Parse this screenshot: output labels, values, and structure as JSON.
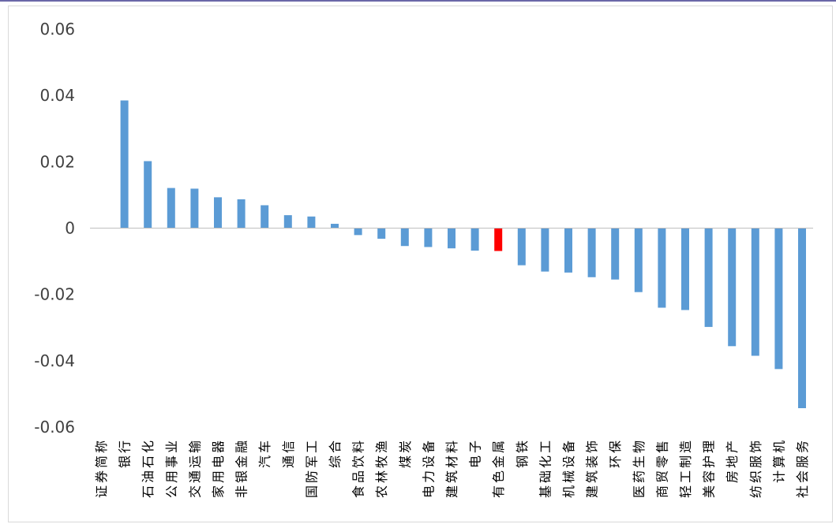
{
  "chart_data": {
    "type": "bar",
    "categories": [
      "证券简称",
      "银行",
      "石油石化",
      "公用事业",
      "交通运输",
      "家用电器",
      "非银金融",
      "汽车",
      "通信",
      "国防军工",
      "综合",
      "食品饮料",
      "农林牧渔",
      "煤炭",
      "电力设备",
      "建筑材料",
      "电子",
      "有色金属",
      "钢铁",
      "基础化工",
      "机械设备",
      "建筑装饰",
      "环保",
      "医药生物",
      "商贸零售",
      "轻工制造",
      "美容护理",
      "房地产",
      "纺织服饰",
      "计算机",
      "社会服务"
    ],
    "values": [
      0,
      0.0385,
      0.0202,
      0.0121,
      0.0119,
      0.0093,
      0.0087,
      0.0069,
      0.0039,
      0.0035,
      0.0013,
      -0.0021,
      -0.0032,
      -0.0054,
      -0.0057,
      -0.0061,
      -0.0068,
      -0.0069,
      -0.0112,
      -0.0131,
      -0.0134,
      -0.0148,
      -0.0155,
      -0.0193,
      -0.024,
      -0.0247,
      -0.0298,
      -0.0356,
      -0.0385,
      -0.0425,
      -0.0543
    ],
    "highlight": "有色金属",
    "colors": {
      "bar": "#5b9bd5",
      "highlight": "#ff0000",
      "axis": "#bfbfbf"
    },
    "ylim": [
      -0.06,
      0.06
    ],
    "yticks": [
      "0.06",
      "0.04",
      "0.02",
      "0",
      "-0.02",
      "-0.04",
      "-0.06"
    ],
    "title": "",
    "xlabel": "",
    "ylabel": "",
    "grid": false,
    "legend": "none"
  }
}
